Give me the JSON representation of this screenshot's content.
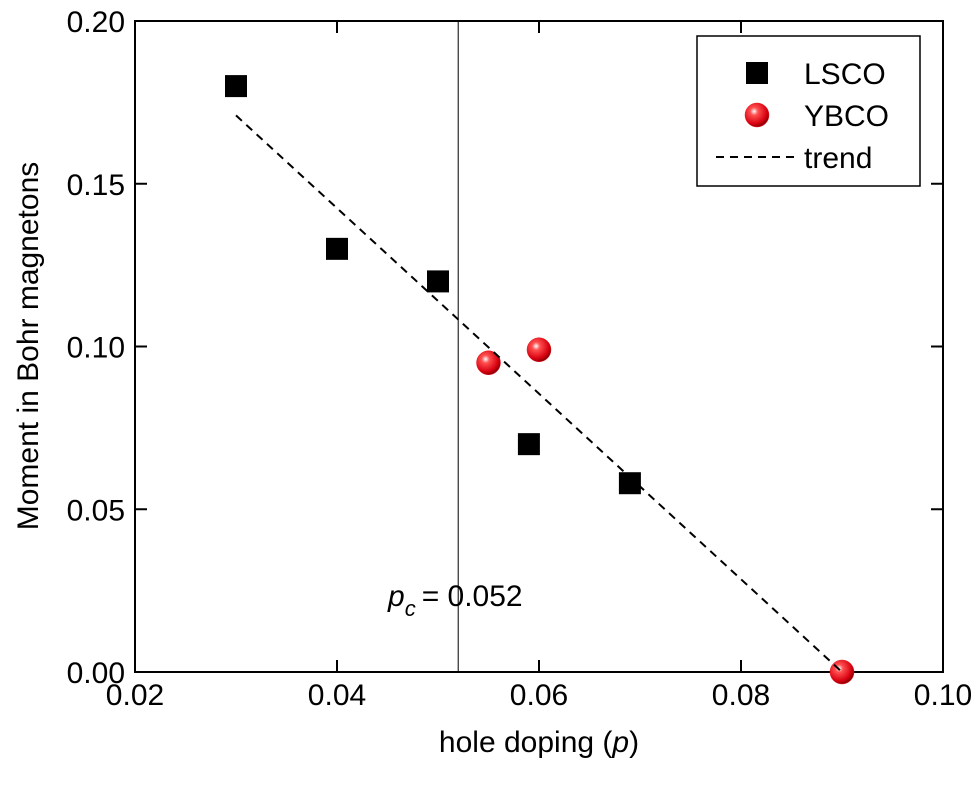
{
  "chart_data": {
    "type": "scatter",
    "xlabel": [
      "hole doping (",
      "p",
      ")"
    ],
    "ylabel": "Moment in Bohr magnetons",
    "xlim": [
      0.02,
      0.1
    ],
    "ylim": [
      0,
      0.2
    ],
    "xticks": [
      0.02,
      0.04,
      0.06,
      0.08,
      {
        "value": 0.1,
        "label": "0.10"
      }
    ],
    "yticks": [
      {
        "value": 0,
        "label": "0.00"
      },
      0.05,
      {
        "value": 0.1,
        "label": "0.10"
      },
      0.15,
      {
        "value": 0.2,
        "label": "0.20"
      }
    ],
    "legend": "upper right",
    "series": [
      {
        "name": "LSCO",
        "color": "#000000",
        "marker": "square",
        "x": [
          0.03,
          0.04,
          0.05,
          0.059,
          0.069
        ],
        "values": [
          0.18,
          0.13,
          0.12,
          0.07,
          0.058
        ]
      },
      {
        "name": "YBCO",
        "color": "#e8141c",
        "marker": "sphere",
        "x": [
          0.055,
          0.06,
          0.09
        ],
        "values": [
          0.095,
          0.099,
          0
        ]
      },
      {
        "name": "trend",
        "color": "#000000",
        "marker": "dashed-line",
        "x": [
          0.03,
          0.09
        ],
        "values": [
          0.171,
          0
        ]
      }
    ],
    "vline": {
      "value": 0.052,
      "symbol": "p",
      "subscript": "c",
      "label": "= 0.052"
    }
  }
}
